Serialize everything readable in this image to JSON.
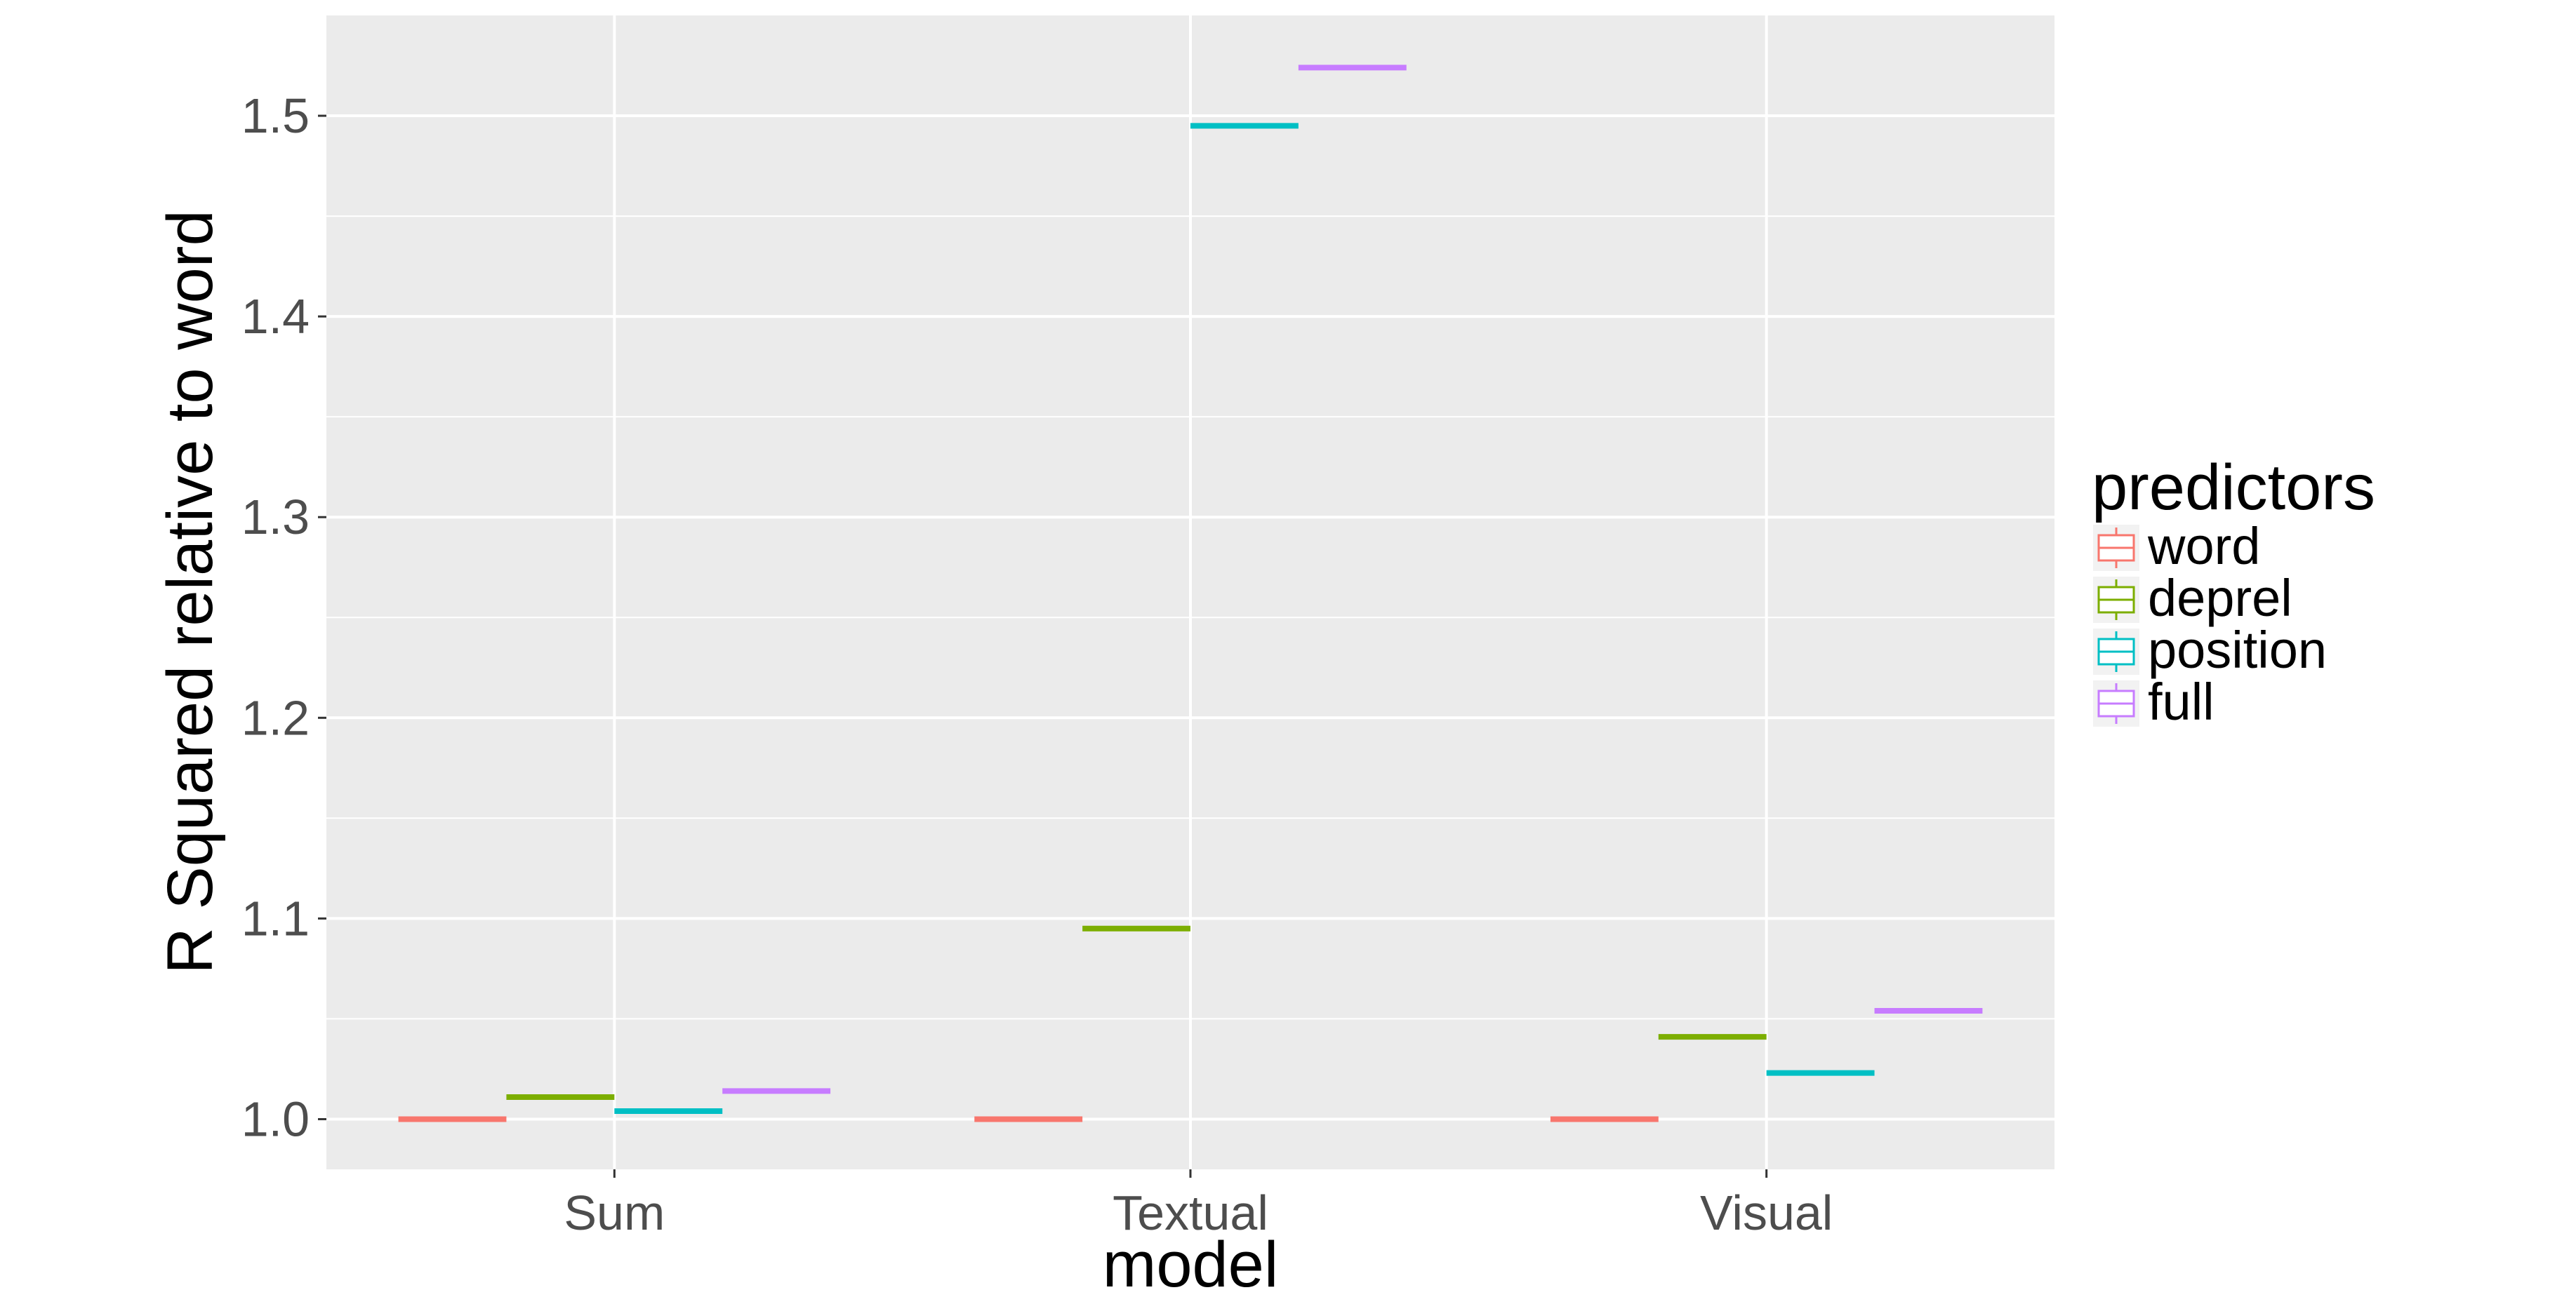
{
  "chart_data": {
    "type": "box",
    "xlabel": "model",
    "ylabel": "R Squared relative to word",
    "categories": [
      "Sum",
      "Textual",
      "Visual"
    ],
    "ylim": [
      0.975,
      1.55
    ],
    "y_ticks": [
      "1.0",
      "1.1",
      "1.2",
      "1.3",
      "1.4",
      "1.5"
    ],
    "y_tick_values": [
      1.0,
      1.1,
      1.2,
      1.3,
      1.4,
      1.5
    ],
    "grid": true,
    "legend": {
      "title": "predictors",
      "placement": "right"
    },
    "series": [
      {
        "name": "word",
        "color": "#F8766D",
        "values": [
          1.0,
          1.0,
          1.0
        ]
      },
      {
        "name": "deprel",
        "color": "#7CAE00",
        "values": [
          1.011,
          1.095,
          1.041
        ]
      },
      {
        "name": "position",
        "color": "#00BFC4",
        "values": [
          1.004,
          1.495,
          1.023
        ]
      },
      {
        "name": "full",
        "color": "#C77CFF",
        "values": [
          1.014,
          1.524,
          1.054
        ]
      }
    ]
  }
}
